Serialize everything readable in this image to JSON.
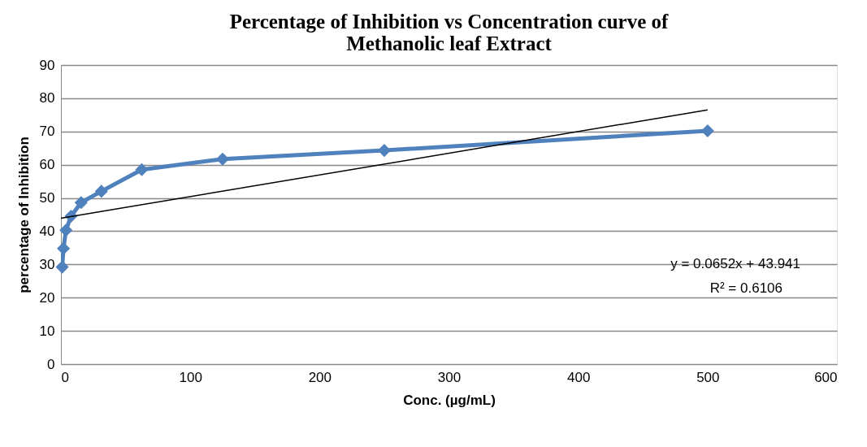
{
  "chart_data": {
    "type": "line",
    "title": [
      "Percentage of Inhibition vs Concentration curve of",
      "Methanolic leaf Extract"
    ],
    "xlabel": "Conc. (µg/mL)",
    "ylabel": "percentage of Inhibition",
    "xlim": [
      0,
      600
    ],
    "xticks": [
      0,
      100,
      200,
      300,
      400,
      500,
      600
    ],
    "ylim": [
      0,
      90
    ],
    "yticks": [
      0,
      10,
      20,
      30,
      40,
      50,
      60,
      70,
      80,
      90
    ],
    "grid": "y",
    "marker": "diamond",
    "line_style": "solid",
    "series": [
      {
        "color": "#4f81bd",
        "x": [
          0.98,
          1.95,
          3.9,
          7.8,
          15.6,
          31.25,
          62.5,
          125,
          250,
          500
        ],
        "values": [
          29.2,
          34.8,
          40.3,
          44.5,
          48.6,
          52.0,
          58.5,
          61.7,
          64.3,
          70.2
        ]
      },
      {
        "type": "line",
        "color": "#000000",
        "marker": "none",
        "x": [
          0,
          500
        ],
        "values": [
          43.9,
          76.5
        ]
      }
    ],
    "annotations": [
      "y = 0.0652x + 43.941",
      "R² = 0.6106"
    ]
  }
}
